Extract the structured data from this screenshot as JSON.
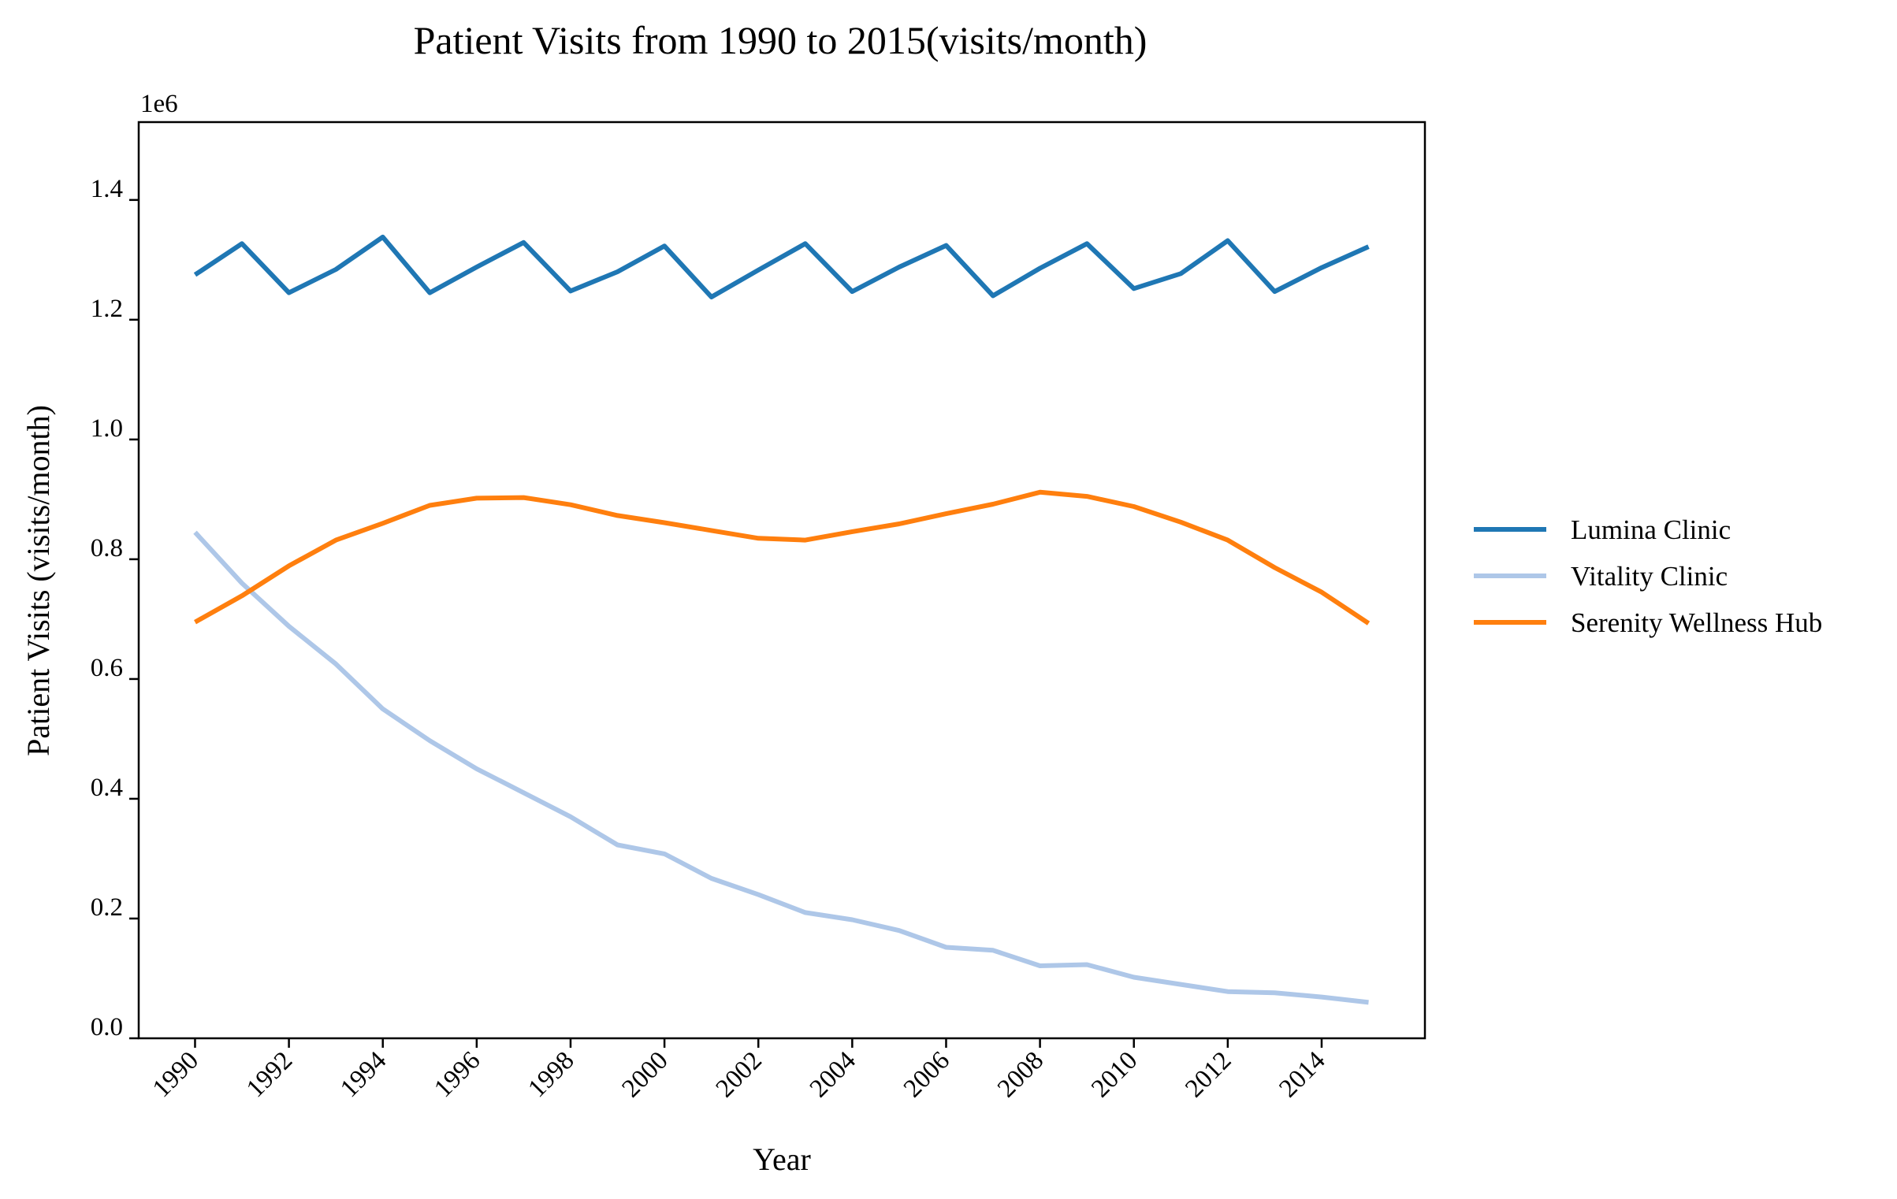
{
  "chart_data": {
    "type": "line",
    "title": "Patient Visits from 1990 to 2015(visits/month)",
    "xlabel": "Year",
    "ylabel": "Patient Visits (visits/month)",
    "y_offset_label": "1e6",
    "xlim": [
      1988.8,
      2016.2
    ],
    "ylim": [
      0,
      1530000
    ],
    "x_ticks": [
      1990,
      1992,
      1994,
      1996,
      1998,
      2000,
      2002,
      2004,
      2006,
      2008,
      2010,
      2012,
      2014
    ],
    "x_tick_labels": [
      "1990",
      "1992",
      "1994",
      "1996",
      "1998",
      "2000",
      "2002",
      "2004",
      "2006",
      "2008",
      "2010",
      "2012",
      "2014"
    ],
    "y_ticks": [
      0,
      200000,
      400000,
      600000,
      800000,
      1000000,
      1200000,
      1400000
    ],
    "y_tick_labels": [
      "0.0",
      "0.2",
      "0.4",
      "0.6",
      "0.8",
      "1.0",
      "1.2",
      "1.4"
    ],
    "grid": false,
    "legend_position": "outside-right",
    "x": [
      1990,
      1991,
      1992,
      1993,
      1994,
      1995,
      1996,
      1997,
      1998,
      1999,
      2000,
      2001,
      2002,
      2003,
      2004,
      2005,
      2006,
      2007,
      2008,
      2009,
      2010,
      2011,
      2012,
      2013,
      2014,
      2015
    ],
    "series": [
      {
        "name": "Lumina Clinic",
        "color": "#1f77b4",
        "values": [
          1275000,
          1327000,
          1245000,
          1284000,
          1338000,
          1245000,
          1288000,
          1329000,
          1248000,
          1280000,
          1323000,
          1238000,
          1283000,
          1327000,
          1247000,
          1288000,
          1324000,
          1240000,
          1286000,
          1327000,
          1252000,
          1277000,
          1332000,
          1247000,
          1287000,
          1322000
        ]
      },
      {
        "name": "Vitality Clinic",
        "color": "#aec7e8",
        "values": [
          845000,
          760000,
          688000,
          625000,
          550000,
          497000,
          450000,
          410000,
          370000,
          323000,
          308000,
          267000,
          240000,
          210000,
          198000,
          180000,
          152000,
          147000,
          121000,
          123000,
          102000,
          90000,
          78000,
          76000,
          69000,
          60000
        ]
      },
      {
        "name": "Serenity Wellness Hub",
        "color": "#ff7f0e",
        "values": [
          695000,
          739000,
          789000,
          832000,
          860000,
          890000,
          902000,
          903000,
          891000,
          873000,
          861000,
          848000,
          835000,
          832000,
          846000,
          859000,
          876000,
          892000,
          912000,
          905000,
          888000,
          862000,
          832000,
          786000,
          745000,
          693000
        ]
      }
    ]
  }
}
